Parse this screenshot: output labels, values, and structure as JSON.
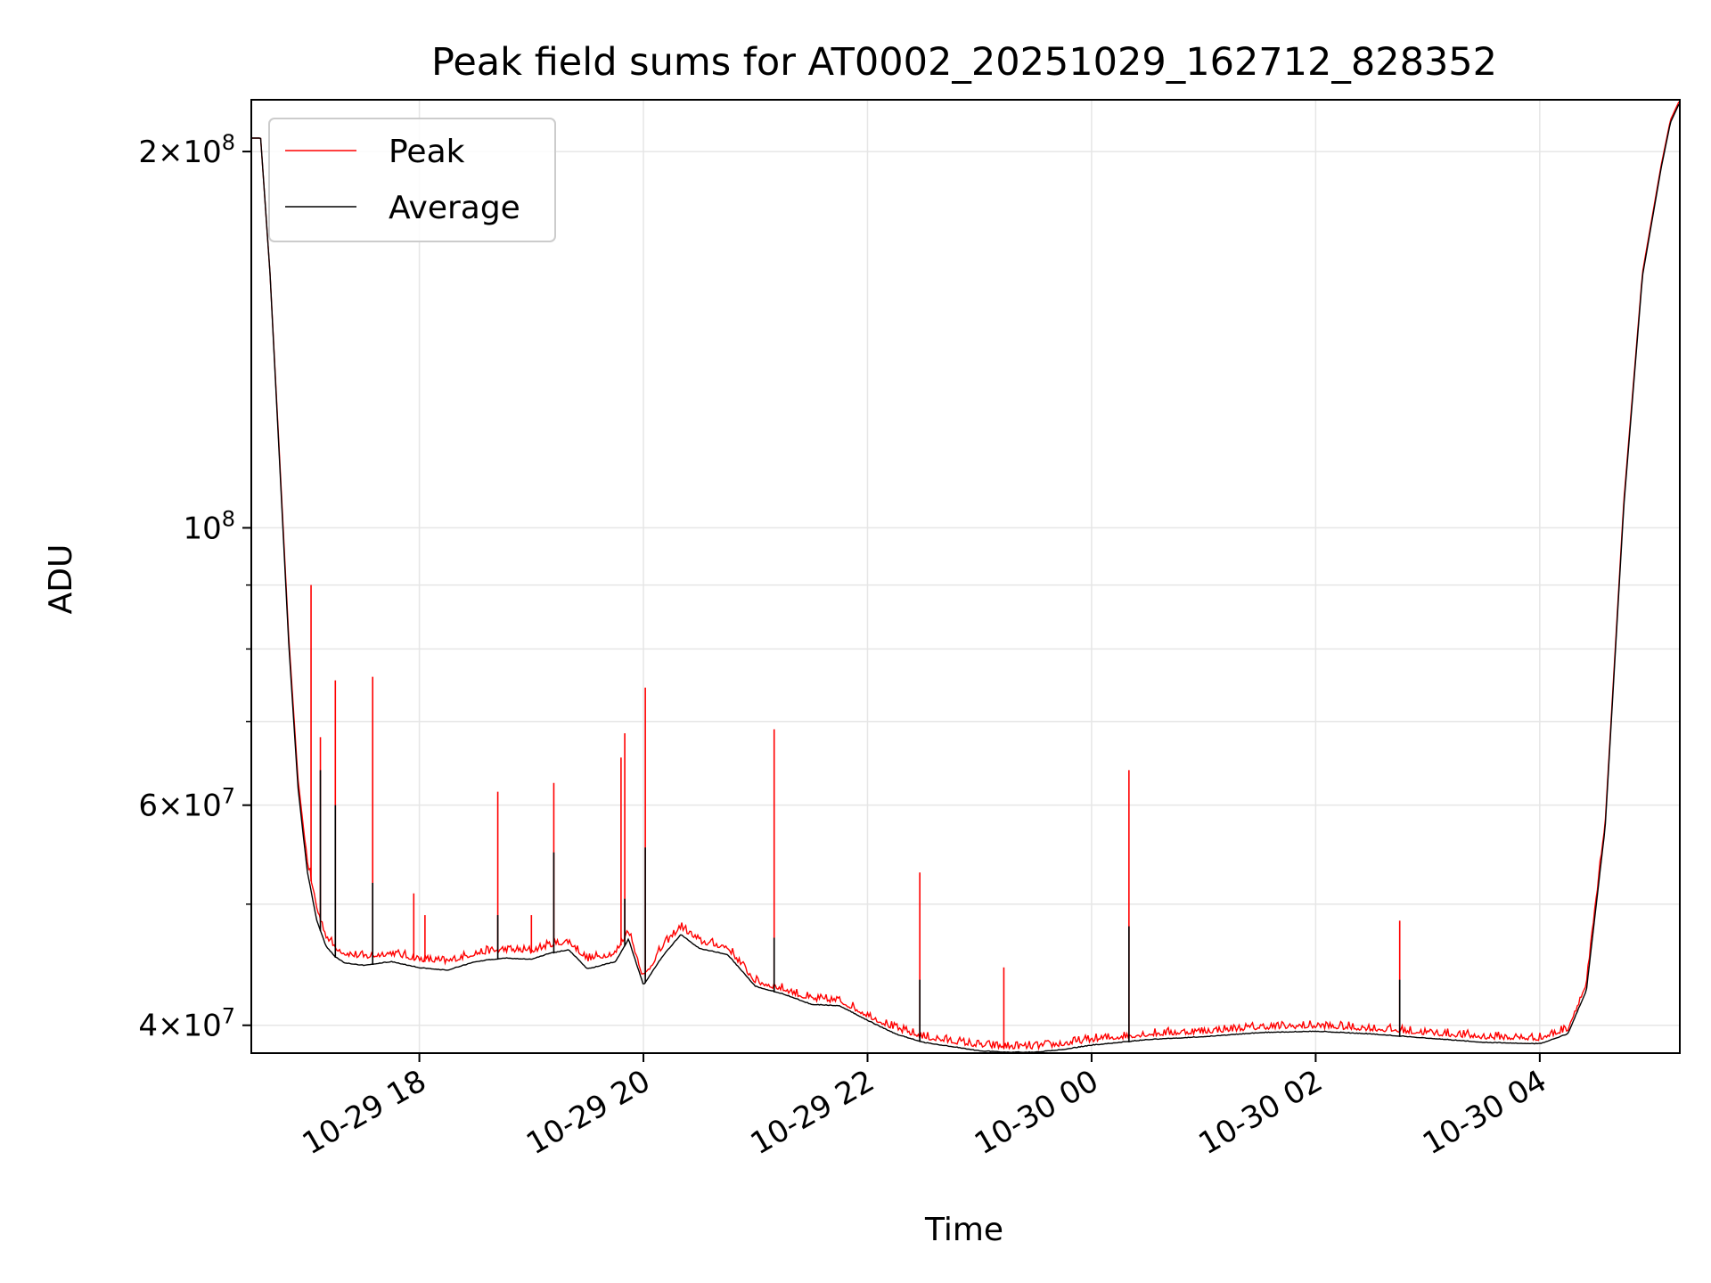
{
  "chart_data": {
    "type": "line",
    "title": "Peak field sums for AT0002_20251029_162712_828352",
    "xlabel": "Time",
    "ylabel": "ADU",
    "yscale": "log",
    "xlim": [
      "2025-10-29 16:30",
      "2025-10-30 05:15"
    ],
    "ylim": [
      38000000,
      220000000
    ],
    "grid": true,
    "legend_position": "top-left",
    "x_ticks": [
      {
        "time": "2025-10-29 18:00",
        "label": "10-29 18"
      },
      {
        "time": "2025-10-29 20:00",
        "label": "10-29 20"
      },
      {
        "time": "2025-10-29 22:00",
        "label": "10-29 22"
      },
      {
        "time": "2025-10-30 00:00",
        "label": "10-30 00"
      },
      {
        "time": "2025-10-30 02:00",
        "label": "10-30 02"
      },
      {
        "time": "2025-10-30 04:00",
        "label": "10-30 04"
      }
    ],
    "y_ticks": [
      {
        "value": 40000000,
        "mant": "4",
        "exp": "7"
      },
      {
        "value": 60000000,
        "mant": "6",
        "exp": "7"
      },
      {
        "value": 100000000,
        "mant": "",
        "exp": "8"
      },
      {
        "value": 200000000,
        "mant": "2",
        "exp": "8"
      }
    ],
    "y_minor_ticks": [
      50000000,
      70000000,
      80000000,
      90000000
    ],
    "series": [
      {
        "name": "Peak",
        "color": "#ff0000",
        "x": [
          "2025-10-29 16:30",
          "2025-10-29 16:35",
          "2025-10-29 16:40",
          "2025-10-29 16:45",
          "2025-10-29 16:50",
          "2025-10-29 16:55",
          "2025-10-29 17:00",
          "2025-10-29 17:05",
          "2025-10-29 17:10",
          "2025-10-29 17:15",
          "2025-10-29 17:20",
          "2025-10-29 17:30",
          "2025-10-29 17:45",
          "2025-10-29 18:00",
          "2025-10-29 18:15",
          "2025-10-29 18:30",
          "2025-10-29 18:45",
          "2025-10-29 19:00",
          "2025-10-29 19:10",
          "2025-10-29 19:20",
          "2025-10-29 19:30",
          "2025-10-29 19:45",
          "2025-10-29 19:52",
          "2025-10-29 20:00",
          "2025-10-29 20:10",
          "2025-10-29 20:20",
          "2025-10-29 20:30",
          "2025-10-29 20:45",
          "2025-10-29 21:00",
          "2025-10-29 21:15",
          "2025-10-29 21:30",
          "2025-10-29 21:45",
          "2025-10-29 22:00",
          "2025-10-29 22:15",
          "2025-10-29 22:30",
          "2025-10-29 22:45",
          "2025-10-29 23:00",
          "2025-10-29 23:15",
          "2025-10-29 23:30",
          "2025-10-29 23:45",
          "2025-10-30 00:00",
          "2025-10-30 00:30",
          "2025-10-30 01:00",
          "2025-10-30 01:30",
          "2025-10-30 02:00",
          "2025-10-30 02:30",
          "2025-10-30 03:00",
          "2025-10-30 03:30",
          "2025-10-30 04:00",
          "2025-10-30 04:15",
          "2025-10-30 04:25",
          "2025-10-30 04:35",
          "2025-10-30 04:45",
          "2025-10-30 04:55",
          "2025-10-30 05:05",
          "2025-10-30 05:10",
          "2025-10-30 05:15"
        ],
        "y": [
          205000000,
          205000000,
          160000000,
          115000000,
          82000000,
          63000000,
          54000000,
          49500000,
          47000000,
          46000000,
          45500000,
          45200000,
          45500000,
          45000000,
          44800000,
          45500000,
          45800000,
          45700000,
          46200000,
          46500000,
          45000000,
          45500000,
          47500000,
          43500000,
          46000000,
          47800000,
          46500000,
          46000000,
          43200000,
          42600000,
          41800000,
          41700000,
          40600000,
          39600000,
          39000000,
          38700000,
          38400000,
          38300000,
          38300000,
          38500000,
          38800000,
          39200000,
          39400000,
          39700000,
          39800000,
          39600000,
          39300000,
          39000000,
          38900000,
          39600000,
          43000000,
          58000000,
          105000000,
          160000000,
          195000000,
          212000000,
          220000000
        ],
        "spikes": [
          {
            "time": "2025-10-29 17:02",
            "value": 90000000
          },
          {
            "time": "2025-10-29 17:07",
            "value": 68000000
          },
          {
            "time": "2025-10-29 17:15",
            "value": 75500000
          },
          {
            "time": "2025-10-29 17:35",
            "value": 76000000
          },
          {
            "time": "2025-10-29 17:57",
            "value": 51000000
          },
          {
            "time": "2025-10-29 18:03",
            "value": 49000000
          },
          {
            "time": "2025-10-29 18:42",
            "value": 61500000
          },
          {
            "time": "2025-10-29 19:00",
            "value": 49000000
          },
          {
            "time": "2025-10-29 19:12",
            "value": 62500000
          },
          {
            "time": "2025-10-29 19:48",
            "value": 65500000
          },
          {
            "time": "2025-10-29 19:50",
            "value": 68500000
          },
          {
            "time": "2025-10-29 20:01",
            "value": 74500000
          },
          {
            "time": "2025-10-29 21:10",
            "value": 69000000
          },
          {
            "time": "2025-10-29 22:28",
            "value": 53000000
          },
          {
            "time": "2025-10-29 23:13",
            "value": 44500000
          },
          {
            "time": "2025-10-30 00:20",
            "value": 64000000
          },
          {
            "time": "2025-10-30 02:45",
            "value": 48500000
          }
        ]
      },
      {
        "name": "Average",
        "color": "#000000",
        "x": [
          "2025-10-29 16:30",
          "2025-10-29 16:35",
          "2025-10-29 16:40",
          "2025-10-29 16:45",
          "2025-10-29 16:50",
          "2025-10-29 16:55",
          "2025-10-29 17:00",
          "2025-10-29 17:05",
          "2025-10-29 17:10",
          "2025-10-29 17:15",
          "2025-10-29 17:20",
          "2025-10-29 17:30",
          "2025-10-29 17:45",
          "2025-10-29 18:00",
          "2025-10-29 18:15",
          "2025-10-29 18:30",
          "2025-10-29 18:45",
          "2025-10-29 19:00",
          "2025-10-29 19:10",
          "2025-10-29 19:20",
          "2025-10-29 19:30",
          "2025-10-29 19:45",
          "2025-10-29 19:52",
          "2025-10-29 20:00",
          "2025-10-29 20:10",
          "2025-10-29 20:20",
          "2025-10-29 20:30",
          "2025-10-29 20:45",
          "2025-10-29 21:00",
          "2025-10-29 21:15",
          "2025-10-29 21:30",
          "2025-10-29 21:45",
          "2025-10-29 22:00",
          "2025-10-29 22:15",
          "2025-10-29 22:30",
          "2025-10-29 22:45",
          "2025-10-29 23:00",
          "2025-10-29 23:15",
          "2025-10-29 23:30",
          "2025-10-29 23:45",
          "2025-10-30 00:00",
          "2025-10-30 00:30",
          "2025-10-30 01:00",
          "2025-10-30 01:30",
          "2025-10-30 02:00",
          "2025-10-30 02:30",
          "2025-10-30 03:00",
          "2025-10-30 03:30",
          "2025-10-30 04:00",
          "2025-10-30 04:15",
          "2025-10-30 04:25",
          "2025-10-30 04:35",
          "2025-10-30 04:45",
          "2025-10-30 04:55",
          "2025-10-30 05:05",
          "2025-10-30 05:10",
          "2025-10-30 05:15"
        ],
        "y": [
          205000000,
          205000000,
          160000000,
          114000000,
          81000000,
          62000000,
          53000000,
          48500000,
          46200000,
          45300000,
          44800000,
          44600000,
          44900000,
          44400000,
          44200000,
          44900000,
          45200000,
          45100000,
          45600000,
          45900000,
          44300000,
          44900000,
          46800000,
          43000000,
          45300000,
          47200000,
          46000000,
          45500000,
          42900000,
          42300000,
          41500000,
          41400000,
          40300000,
          39300000,
          38700000,
          38400000,
          38100000,
          38000000,
          38000000,
          38200000,
          38500000,
          38900000,
          39100000,
          39400000,
          39500000,
          39300000,
          39000000,
          38700000,
          38600000,
          39300000,
          42600000,
          57500000,
          104000000,
          159000000,
          194000000,
          211000000,
          219000000
        ],
        "spikes": [
          {
            "time": "2025-10-29 17:07",
            "value": 64000000
          },
          {
            "time": "2025-10-29 17:15",
            "value": 60000000
          },
          {
            "time": "2025-10-29 17:35",
            "value": 52000000
          },
          {
            "time": "2025-10-29 18:42",
            "value": 49000000
          },
          {
            "time": "2025-10-29 19:12",
            "value": 55000000
          },
          {
            "time": "2025-10-29 19:50",
            "value": 50500000
          },
          {
            "time": "2025-10-29 20:01",
            "value": 55500000
          },
          {
            "time": "2025-10-29 21:10",
            "value": 47000000
          },
          {
            "time": "2025-10-29 22:28",
            "value": 43500000
          },
          {
            "time": "2025-10-30 00:20",
            "value": 48000000
          },
          {
            "time": "2025-10-30 02:45",
            "value": 43500000
          }
        ]
      }
    ]
  }
}
